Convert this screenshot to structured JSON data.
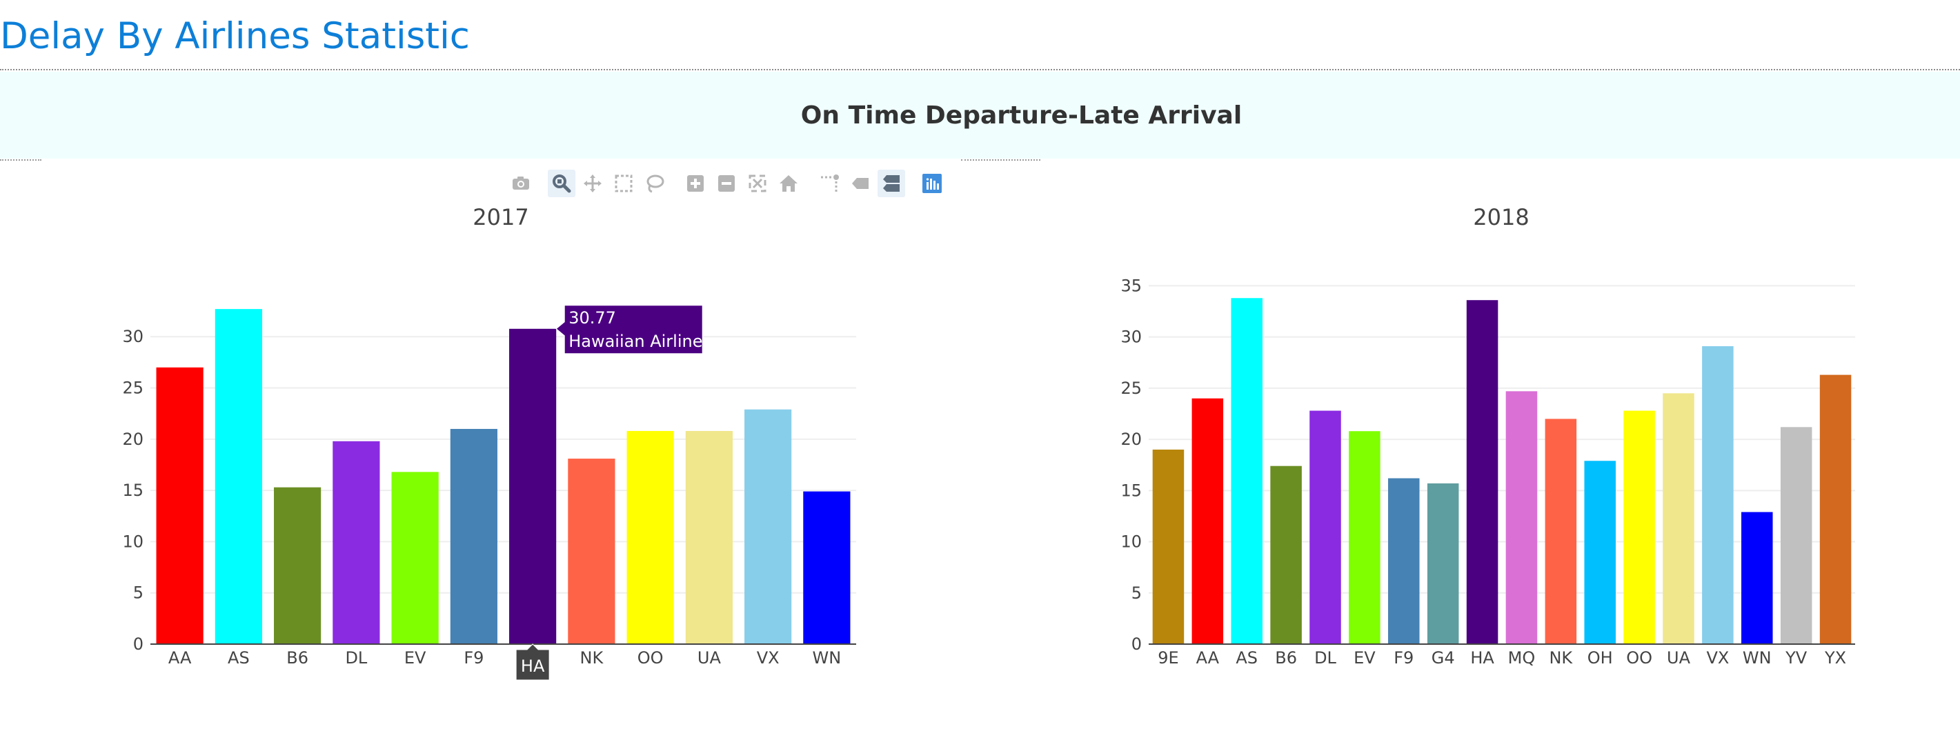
{
  "page": {
    "title": "Delay By Airlines Statistic",
    "banner_title": "On Time Departure-Late Arrival"
  },
  "modebar": {
    "buttons": [
      {
        "name": "camera-icon",
        "label": "Download plot as a png"
      },
      {
        "name": "zoom-icon",
        "label": "Zoom",
        "active": true
      },
      {
        "name": "pan-icon",
        "label": "Pan"
      },
      {
        "name": "box-select-icon",
        "label": "Box Select"
      },
      {
        "name": "lasso-select-icon",
        "label": "Lasso Select"
      },
      {
        "name": "zoom-in-icon",
        "label": "Zoom in"
      },
      {
        "name": "zoom-out-icon",
        "label": "Zoom out"
      },
      {
        "name": "autoscale-icon",
        "label": "Autoscale"
      },
      {
        "name": "home-icon",
        "label": "Reset axes"
      },
      {
        "name": "spike-lines-icon",
        "label": "Toggle Spike Lines"
      },
      {
        "name": "hover-closest-icon",
        "label": "Show closest data on hover"
      },
      {
        "name": "hover-compare-icon",
        "label": "Compare data on hover",
        "active": true
      },
      {
        "name": "plotly-logo-icon",
        "label": "Produced with Plotly"
      }
    ],
    "colors": {
      "icon": "#b5b5b5",
      "active_icon": "#5d6d7e",
      "logo": "#3f8ede"
    }
  },
  "chart_data": [
    {
      "type": "bar",
      "title": "2017",
      "xlabel": "",
      "ylabel": "",
      "categories": [
        "AA",
        "AS",
        "B6",
        "DL",
        "EV",
        "F9",
        "HA",
        "NK",
        "OO",
        "UA",
        "VX",
        "WN"
      ],
      "values": [
        27.0,
        32.7,
        15.3,
        19.8,
        16.8,
        21.0,
        30.77,
        18.1,
        20.8,
        20.8,
        22.9,
        14.9
      ],
      "colors": [
        "#ff0000",
        "#00ffff",
        "#6b8e23",
        "#8a2be2",
        "#7fff00",
        "#4682b4",
        "#4b0082",
        "#ff6347",
        "#ffff00",
        "#f0e68c",
        "#87ceeb",
        "#0000ff"
      ],
      "ylim": [
        0,
        34
      ],
      "yticks": [
        0,
        5,
        10,
        15,
        20,
        25,
        30
      ],
      "grid": true,
      "hover": {
        "index": 6,
        "value_text": "30.77",
        "name_text": "Hawaiian Airlines",
        "axis_label": "HA",
        "color": "#4b0082"
      }
    },
    {
      "type": "bar",
      "title": "2018",
      "xlabel": "",
      "ylabel": "",
      "categories": [
        "9E",
        "AA",
        "AS",
        "B6",
        "DL",
        "EV",
        "F9",
        "G4",
        "HA",
        "MQ",
        "NK",
        "OH",
        "OO",
        "UA",
        "VX",
        "WN",
        "YV",
        "YX"
      ],
      "values": [
        19.0,
        24.0,
        33.8,
        17.4,
        22.8,
        20.8,
        16.2,
        15.7,
        33.6,
        24.7,
        22.0,
        17.9,
        22.8,
        24.5,
        29.1,
        12.9,
        21.2,
        26.3
      ],
      "colors": [
        "#b8860b",
        "#ff0000",
        "#00ffff",
        "#6b8e23",
        "#8a2be2",
        "#7fff00",
        "#4682b4",
        "#5f9ea0",
        "#4b0082",
        "#da70d6",
        "#ff6347",
        "#00bfff",
        "#ffff00",
        "#f0e68c",
        "#87ceeb",
        "#0000ff",
        "#c0c0c0",
        "#d2691e"
      ],
      "ylim": [
        0,
        35.5
      ],
      "yticks": [
        0,
        5,
        10,
        15,
        20,
        25,
        30,
        35
      ],
      "grid": true
    }
  ]
}
